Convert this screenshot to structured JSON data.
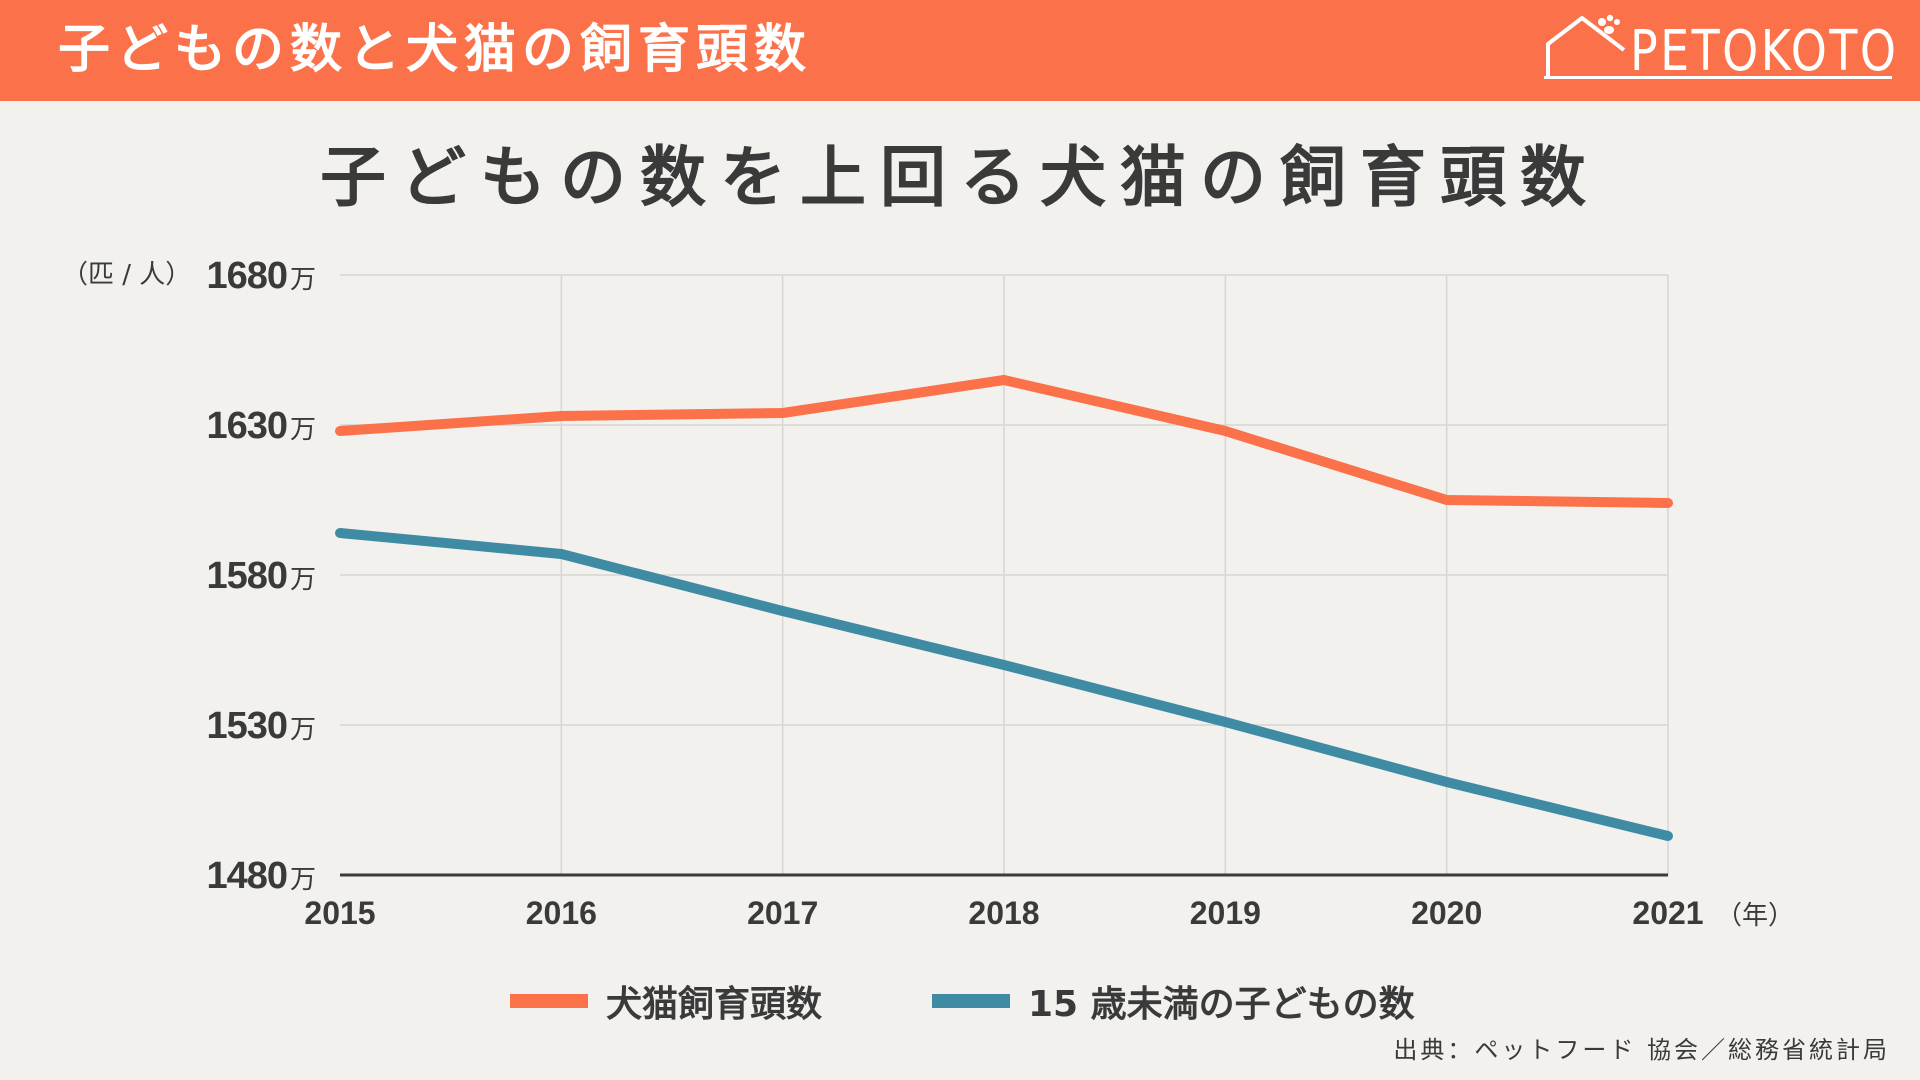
{
  "header": {
    "title": "子どもの数と犬猫の飼育頭数",
    "logo_text": "PETOKOTO"
  },
  "colors": {
    "header_bg": "#fb7149",
    "pets": "#fb7149",
    "children": "#3f8ba4",
    "axis": "#3a3a3a",
    "grid": "#d8d6d2"
  },
  "icons": {
    "logo": "house-with-paw-icon"
  },
  "chart_data": {
    "type": "line",
    "title": "子どもの数を上回る犬猫の飼育頭数",
    "unit_label": "（匹 / 人）",
    "y_tick_suffix": "万",
    "x_unit_label": "（年）",
    "ylim": [
      1480,
      1680
    ],
    "y_ticks": [
      1680,
      1630,
      1580,
      1530,
      1480
    ],
    "categories": [
      "2015",
      "2016",
      "2017",
      "2018",
      "2019",
      "2020",
      "2021"
    ],
    "series": [
      {
        "name": "犬猫飼育頭数",
        "color": "#fb7149",
        "values": [
          1628,
          1633,
          1634,
          1645,
          1628,
          1605,
          1604
        ]
      },
      {
        "name": "15 歳未満の子どもの数",
        "color": "#3f8ba4",
        "values": [
          1594,
          1587,
          1568,
          1550,
          1531,
          1511,
          1493
        ]
      }
    ],
    "grid": true,
    "legend": "bottom"
  },
  "source": "出典：ペットフード 協会／総務省統計局"
}
